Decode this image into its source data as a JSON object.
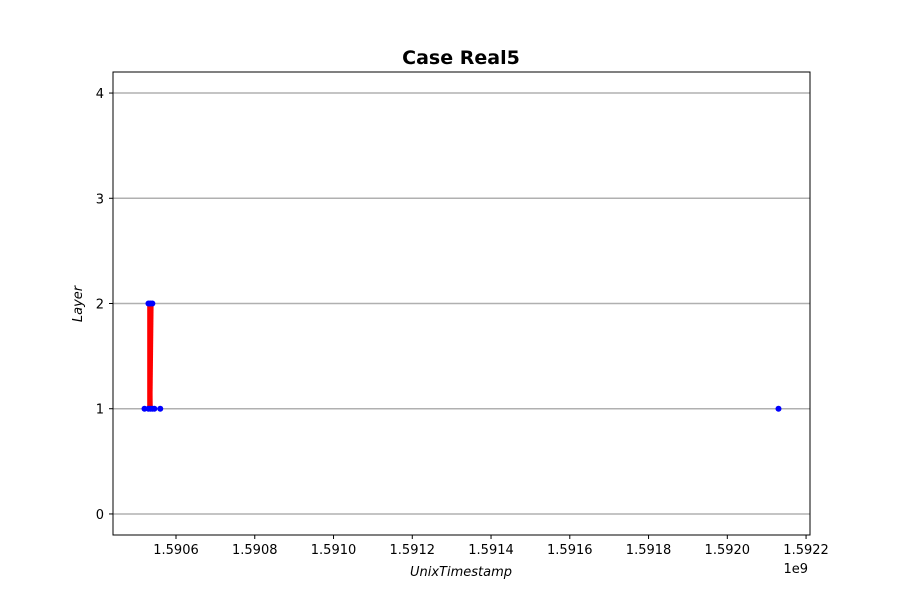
{
  "chart_data": {
    "type": "scatter",
    "title": "Case Real5",
    "xlabel": "UnixTimestamp",
    "ylabel": "Layer",
    "x_offset_label": "1e9",
    "xlim": [
      1590440000,
      1592210000
    ],
    "ylim": [
      -0.2,
      4.2
    ],
    "xticks": [
      1590600000,
      1590800000,
      1591000000,
      1591200000,
      1591400000,
      1591600000,
      1591800000,
      1592000000,
      1592200000
    ],
    "xtick_labels": [
      "1.5906",
      "1.5908",
      "1.5910",
      "1.5912",
      "1.5914",
      "1.5916",
      "1.5918",
      "1.5920",
      "1.5922"
    ],
    "yticks": [
      0,
      1,
      2,
      3,
      4
    ],
    "ytick_labels": [
      "0",
      "1",
      "2",
      "3",
      "4"
    ],
    "grid": "horizontal",
    "series": [
      {
        "kind": "points",
        "color": "#0000ff",
        "x": [
          1590520000,
          1590530000,
          1590535000,
          1590540000,
          1590545000,
          1590560000,
          1592130000,
          1590530000,
          1590535000,
          1590540000
        ],
        "y": [
          1,
          1,
          1,
          1,
          1,
          1,
          1,
          2,
          2,
          2
        ]
      },
      {
        "kind": "edges",
        "color": "#ff0000",
        "segments": [
          [
            [
              1590530000,
              1
            ],
            [
              1590530000,
              2
            ]
          ],
          [
            [
              1590535000,
              1
            ],
            [
              1590535000,
              2
            ]
          ],
          [
            [
              1590537000,
              1
            ],
            [
              1590540000,
              2
            ]
          ],
          [
            [
              1590538000,
              1
            ],
            [
              1590532000,
              2
            ]
          ]
        ]
      }
    ]
  }
}
